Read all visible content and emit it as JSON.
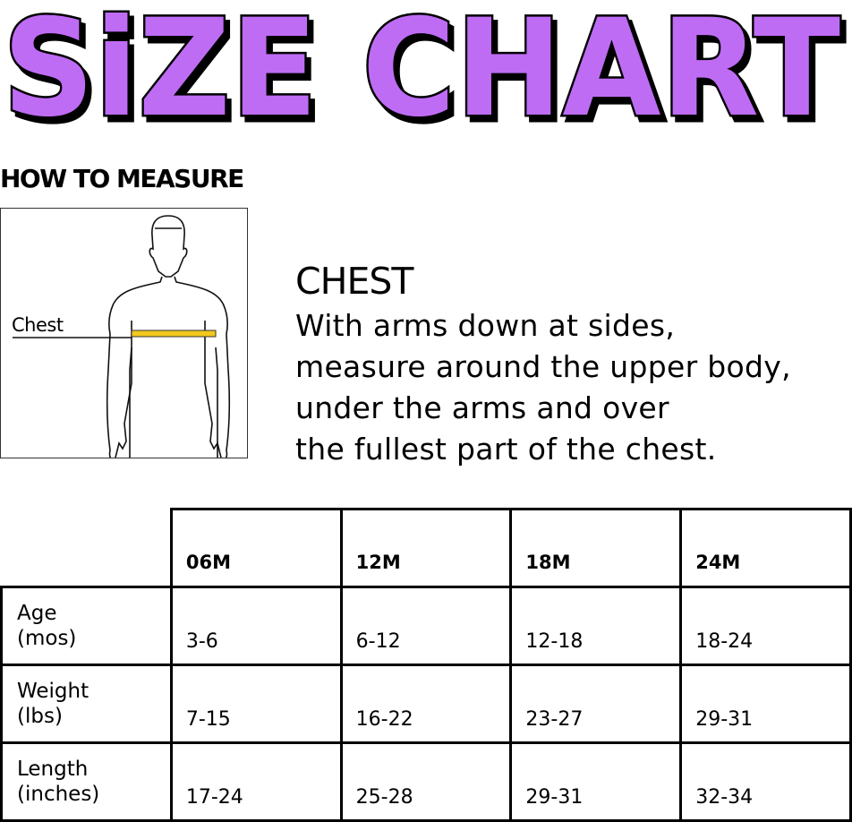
{
  "title": "SiZE CHART",
  "title_color": "#bf6cf5",
  "how_to_measure": "HOW TO MEASURE",
  "figure": {
    "label": "Chest",
    "tape_color": "#f2c81c"
  },
  "chest": {
    "heading": "CHEST",
    "lines": [
      "With arms down at sides,",
      "measure around the upper body,",
      "under the arms and over",
      "the fullest part of the chest."
    ]
  },
  "table": {
    "headers": [
      "06M",
      "12M",
      "18M",
      "24M"
    ],
    "rows": [
      {
        "label": [
          "Age",
          "(mos)"
        ],
        "values": [
          "3-6",
          "6-12",
          "12-18",
          "18-24"
        ]
      },
      {
        "label": [
          "Weight",
          "(lbs)"
        ],
        "values": [
          "7-15",
          "16-22",
          "23-27",
          "29-31"
        ]
      },
      {
        "label": [
          "Length",
          "(inches)"
        ],
        "values": [
          "17-24",
          "25-28",
          "29-31",
          "32-34"
        ]
      }
    ]
  }
}
